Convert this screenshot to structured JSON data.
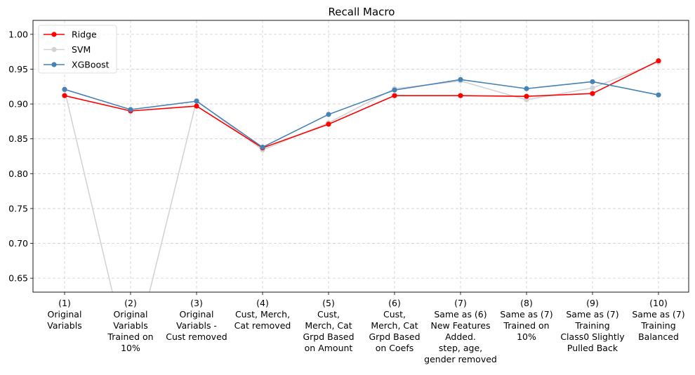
{
  "chart_data": {
    "type": "line",
    "title": "Recall Macro",
    "xlabel": "",
    "ylabel": "",
    "ylim": [
      0.63,
      1.02
    ],
    "y_ticks": [
      "0.65",
      "0.70",
      "0.75",
      "0.80",
      "0.85",
      "0.90",
      "0.95",
      "1.00"
    ],
    "grid": true,
    "legend_position": "top-left",
    "categories": [
      [
        "(1)",
        "Original",
        "Variabls"
      ],
      [
        "(2)",
        "Original",
        "Variabls",
        "Trained on",
        "10%"
      ],
      [
        "(3)",
        "Original",
        "Variabls -",
        "Cust removed"
      ],
      [
        "(4)",
        "Cust, Merch,",
        "Cat removed"
      ],
      [
        "(5)",
        "Cust,",
        "Merch, Cat",
        "Grpd Based",
        "on Amount"
      ],
      [
        "(6)",
        "Cust,",
        "Merch, Cat",
        "Grpd Based",
        "on Coefs"
      ],
      [
        "(7)",
        "Same as (6)",
        "New Features",
        "Added.",
        "step, age,",
        "gender removed"
      ],
      [
        "(8)",
        "Same as (7)",
        "Trained on",
        "10%"
      ],
      [
        "(9)",
        "Same as (7)",
        "Training",
        "Class0 Slightly",
        "Pulled Back"
      ],
      [
        "(10)",
        "Same as (7)",
        "Training",
        "Balanced"
      ]
    ],
    "series": [
      {
        "name": "Ridge",
        "color": "#ff0000",
        "values": [
          0.912,
          0.89,
          0.897,
          0.837,
          0.871,
          0.912,
          0.912,
          0.911,
          0.915,
          0.962
        ]
      },
      {
        "name": "SVM",
        "color": "#d3d3d3",
        "values": [
          0.92,
          0.52,
          0.905,
          0.834,
          0.873,
          0.922,
          0.933,
          0.906,
          0.923,
          0.96
        ]
      },
      {
        "name": "XGBoost",
        "color": "#4682b4",
        "values": [
          0.921,
          0.892,
          0.904,
          0.838,
          0.885,
          0.92,
          0.935,
          0.922,
          0.932,
          0.913
        ]
      }
    ]
  }
}
